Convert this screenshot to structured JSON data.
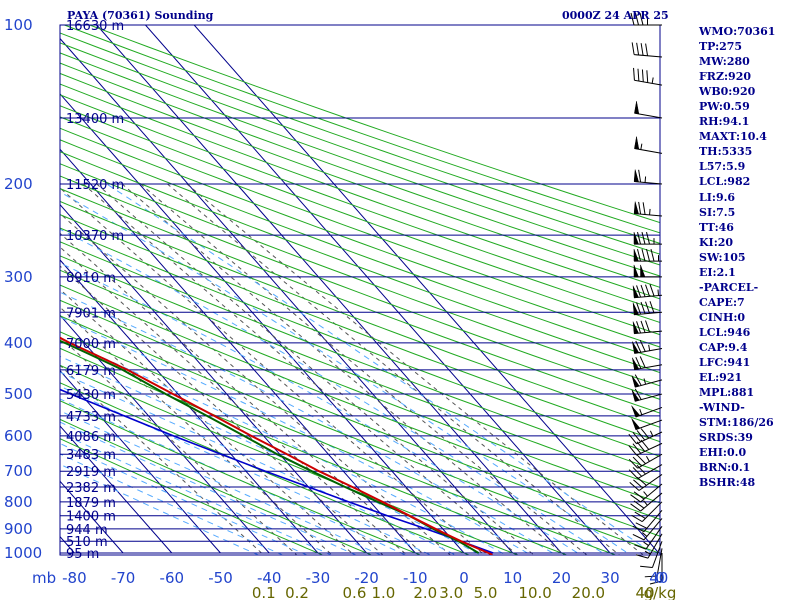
{
  "header": {
    "title_left": "PAYA (70361) Sounding",
    "title_right": "0000Z 24 APR 25"
  },
  "indices": [
    "WMO:70361",
    "TP:275",
    "MW:280",
    "FRZ:920",
    "WB0:920",
    "PW:0.59",
    "RH:94.1",
    "MAXT:10.4",
    "TH:5335",
    "L57:5.9",
    "LCL:982",
    "LI:9.6",
    "SI:7.5",
    "TT:46",
    "KI:20",
    "SW:105",
    "EI:2.1",
    "-PARCEL-",
    "CAPE:7",
    "CINH:0",
    "LCL:946",
    "CAP:9.4",
    "LFC:941",
    "EL:921",
    "MPL:881",
    "-WIND-",
    "STM:186/26",
    "SRDS:39",
    "EHI:0.0",
    "BRN:0.1",
    "BSHR:48"
  ],
  "colors": {
    "isobar": "#00008b",
    "isotherm": "#00008b",
    "dry_adiabat": "#22aa22",
    "moist_adiabat": "#55aaff",
    "mixing_ratio": "#555555",
    "temperature": "#cc0000",
    "dewpoint": "#006400",
    "parcel": "#0000cc",
    "axis_text": "#2244cc",
    "mixing_text": "#666600",
    "wind": "#000000"
  },
  "chart_data": {
    "type": "skew-t",
    "xlabel_prefix": "mb",
    "pressure_levels": [
      100,
      200,
      300,
      400,
      500,
      600,
      700,
      800,
      900,
      1000
    ],
    "pressure_labels": [
      "100",
      "200",
      "300",
      "400",
      "500",
      "600",
      "700",
      "800",
      "900",
      "1000"
    ],
    "temperature_ticks": [
      -80,
      -70,
      -60,
      -50,
      -40,
      -30,
      -20,
      -10,
      0,
      10,
      20,
      30,
      40
    ],
    "temperature_tick_labels": [
      "-80",
      "-70",
      "-60",
      "-50",
      "-40",
      "-30",
      "-20",
      "-10",
      "0",
      "10",
      "20",
      "30",
      "40"
    ],
    "extra_tick_label": "0",
    "height_labels": [
      {
        "p": 100,
        "label": "16630 m"
      },
      {
        "p": 150,
        "label": "13400 m"
      },
      {
        "p": 200,
        "label": "11520 m"
      },
      {
        "p": 250,
        "label": "10370 m"
      },
      {
        "p": 300,
        "label": "8910 m"
      },
      {
        "p": 350,
        "label": "7901 m"
      },
      {
        "p": 400,
        "label": "7000 m"
      },
      {
        "p": 450,
        "label": "6179 m"
      },
      {
        "p": 500,
        "label": "5430 m"
      },
      {
        "p": 550,
        "label": "4733 m"
      },
      {
        "p": 600,
        "label": "4086 m"
      },
      {
        "p": 650,
        "label": "3483 m"
      },
      {
        "p": 700,
        "label": "2919 m"
      },
      {
        "p": 750,
        "label": "2382 m"
      },
      {
        "p": 800,
        "label": "1879 m"
      },
      {
        "p": 850,
        "label": "1400 m"
      },
      {
        "p": 900,
        "label": "944 m"
      },
      {
        "p": 950,
        "label": "510 m"
      },
      {
        "p": 1000,
        "label": "95 m"
      }
    ],
    "mixing_ratio_labels": [
      {
        "w": 0.1,
        "label": "0.1"
      },
      {
        "w": 0.2,
        "label": "0.2"
      },
      {
        "w": 0.6,
        "label": "0.6"
      },
      {
        "w": 1.0,
        "label": "1.0"
      },
      {
        "w": 2.0,
        "label": "2.0"
      },
      {
        "w": 3.0,
        "label": "3.0"
      },
      {
        "w": 5.0,
        "label": "5.0"
      },
      {
        "w": 10.0,
        "label": "10.0"
      },
      {
        "w": 20.0,
        "label": "20.0"
      },
      {
        "w": 40.0,
        "label": "40"
      }
    ],
    "mixing_ratio_unit": "g/kg",
    "temperature_profile": [
      [
        1008,
        5.5
      ],
      [
        1000,
        5.0
      ],
      [
        950,
        1.5
      ],
      [
        925,
        0.0
      ],
      [
        900,
        -1.5
      ],
      [
        850,
        -4.5
      ],
      [
        800,
        -7.5
      ],
      [
        750,
        -11.0
      ],
      [
        700,
        -15.0
      ],
      [
        650,
        -18.5
      ],
      [
        600,
        -22.5
      ],
      [
        550,
        -26.5
      ],
      [
        500,
        -31.0
      ],
      [
        450,
        -36.0
      ],
      [
        420,
        -40.0
      ],
      [
        400,
        -43.0
      ],
      [
        380,
        -45.5
      ],
      [
        360,
        -48.5
      ],
      [
        340,
        -51.5
      ],
      [
        320,
        -54.5
      ],
      [
        300,
        -57.5
      ],
      [
        290,
        -59.5
      ],
      [
        280,
        -61.0
      ],
      [
        270,
        -60.5
      ],
      [
        262,
        -58.0
      ],
      [
        250,
        -53.0
      ],
      [
        240,
        -50.0
      ],
      [
        225,
        -48.0
      ],
      [
        210,
        -48.0
      ],
      [
        200,
        -50.0
      ],
      [
        180,
        -53.0
      ],
      [
        160,
        -56.5
      ],
      [
        150,
        -58.0
      ],
      [
        130,
        -62.0
      ],
      [
        115,
        -65.5
      ],
      [
        100,
        -68.5
      ]
    ],
    "dewpoint_profile": [
      [
        1000,
        3.0
      ],
      [
        950,
        1.0
      ],
      [
        900,
        -2.0
      ],
      [
        850,
        -4.5
      ],
      [
        800,
        -8.5
      ],
      [
        750,
        -12.5
      ],
      [
        700,
        -16.5
      ],
      [
        650,
        -20.5
      ],
      [
        600,
        -24.0
      ],
      [
        550,
        -28.0
      ],
      [
        500,
        -32.5
      ],
      [
        450,
        -37.0
      ],
      [
        420,
        -41.0
      ],
      [
        400,
        -44.0
      ],
      [
        380,
        -47.5
      ],
      [
        360,
        -50.0
      ],
      [
        340,
        -51.0
      ],
      [
        320,
        -55.0
      ],
      [
        310,
        -58.0
      ],
      [
        300,
        -59.0
      ],
      [
        290,
        -60.0
      ],
      [
        280,
        -61.0
      ],
      [
        272,
        -65.0
      ],
      [
        262,
        -75.5
      ],
      [
        250,
        -77.0
      ],
      [
        230,
        -79.0
      ],
      [
        210,
        -82.0
      ],
      [
        200,
        -84.0
      ]
    ],
    "parcel_profile": [
      [
        1000,
        6.0
      ],
      [
        950,
        1.5
      ],
      [
        900,
        -3.5
      ],
      [
        850,
        -9.0
      ],
      [
        800,
        -14.5
      ],
      [
        750,
        -20.0
      ],
      [
        700,
        -26.0
      ],
      [
        650,
        -32.0
      ],
      [
        600,
        -38.5
      ],
      [
        550,
        -45.0
      ],
      [
        500,
        -52.0
      ],
      [
        450,
        -59.5
      ],
      [
        400,
        -67.5
      ],
      [
        350,
        -76.0
      ],
      [
        300,
        -85.0
      ],
      [
        270,
        -90.0
      ]
    ],
    "wind_barbs": [
      {
        "p": 100,
        "dir": 270,
        "spd": 35
      },
      {
        "p": 115,
        "dir": 275,
        "spd": 40
      },
      {
        "p": 130,
        "dir": 280,
        "spd": 45
      },
      {
        "p": 150,
        "dir": 280,
        "spd": 50
      },
      {
        "p": 175,
        "dir": 280,
        "spd": 55
      },
      {
        "p": 200,
        "dir": 275,
        "spd": 65
      },
      {
        "p": 230,
        "dir": 275,
        "spd": 75
      },
      {
        "p": 260,
        "dir": 270,
        "spd": 85
      },
      {
        "p": 280,
        "dir": 270,
        "spd": 95
      },
      {
        "p": 300,
        "dir": 270,
        "spd": 100
      },
      {
        "p": 325,
        "dir": 265,
        "spd": 95
      },
      {
        "p": 350,
        "dir": 265,
        "spd": 90
      },
      {
        "p": 380,
        "dir": 265,
        "spd": 80
      },
      {
        "p": 410,
        "dir": 260,
        "spd": 75
      },
      {
        "p": 440,
        "dir": 260,
        "spd": 70
      },
      {
        "p": 470,
        "dir": 255,
        "spd": 65
      },
      {
        "p": 500,
        "dir": 255,
        "spd": 60
      },
      {
        "p": 530,
        "dir": 250,
        "spd": 55
      },
      {
        "p": 560,
        "dir": 250,
        "spd": 50
      },
      {
        "p": 590,
        "dir": 245,
        "spd": 45
      },
      {
        "p": 620,
        "dir": 245,
        "spd": 40
      },
      {
        "p": 650,
        "dir": 240,
        "spd": 35
      },
      {
        "p": 680,
        "dir": 240,
        "spd": 30
      },
      {
        "p": 710,
        "dir": 235,
        "spd": 30
      },
      {
        "p": 740,
        "dir": 230,
        "spd": 25
      },
      {
        "p": 770,
        "dir": 230,
        "spd": 25
      },
      {
        "p": 800,
        "dir": 225,
        "spd": 20
      },
      {
        "p": 830,
        "dir": 220,
        "spd": 20
      },
      {
        "p": 860,
        "dir": 220,
        "spd": 15
      },
      {
        "p": 890,
        "dir": 215,
        "spd": 15
      },
      {
        "p": 920,
        "dir": 210,
        "spd": 15
      },
      {
        "p": 950,
        "dir": 200,
        "spd": 10
      },
      {
        "p": 980,
        "dir": 190,
        "spd": 10
      },
      {
        "p": 1000,
        "dir": 180,
        "spd": 10
      }
    ]
  }
}
